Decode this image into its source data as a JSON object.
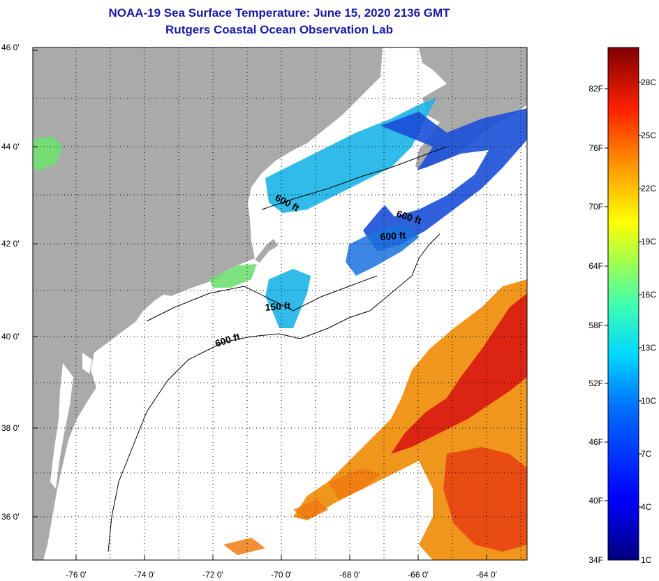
{
  "header": {
    "title": "NOAA-19 Sea Surface Temperature:  June 15, 2020 2136 GMT",
    "subtitle": "Rutgers Coastal Ocean Observation Lab"
  },
  "axes": {
    "lat_labels": [
      "46 0'",
      "44 0'",
      "42 0'",
      "40 0'",
      "38 0'",
      "36 0'"
    ],
    "lon_labels": [
      "-76 0'",
      "-74 0'",
      "-72 0'",
      "-70 0'",
      "-68 0'",
      "-66 0'",
      "-64 0'"
    ]
  },
  "contours": {
    "labels": [
      "600 ft",
      "600 ft",
      "600 ft",
      "150 ft",
      "600 ft"
    ]
  },
  "colorbar": {
    "fahrenheit": [
      "82F",
      "76F",
      "70F",
      "64F",
      "58F",
      "52F",
      "46F",
      "40F",
      "34F"
    ],
    "celsius": [
      "28C",
      "25C",
      "22C",
      "19C",
      "16C",
      "13C",
      "10C",
      "7C",
      "4C",
      "1C"
    ]
  },
  "colors": {
    "title": "#1a1aa6",
    "land": "#aaaaaa",
    "water_nodata": "#ffffff",
    "cold": "#1a4fd8",
    "cool": "#1ab4e8",
    "mild": "#70e070",
    "warm": "#f08010",
    "hot": "#d81010"
  }
}
